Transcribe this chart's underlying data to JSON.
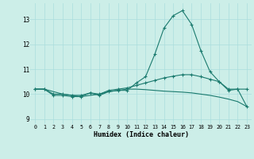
{
  "xlabel": "Humidex (Indice chaleur)",
  "xlim": [
    -0.5,
    23.5
  ],
  "ylim": [
    8.8,
    13.65
  ],
  "background_color": "#cceee8",
  "grid_color": "#aadddd",
  "line_color": "#1a7a6e",
  "x": [
    0,
    1,
    2,
    3,
    4,
    5,
    6,
    7,
    8,
    9,
    10,
    11,
    12,
    13,
    14,
    15,
    16,
    17,
    18,
    19,
    20,
    21,
    22,
    23
  ],
  "line1": [
    10.2,
    10.2,
    9.95,
    9.95,
    9.9,
    9.9,
    10.05,
    9.95,
    10.1,
    10.15,
    10.15,
    10.45,
    10.7,
    11.6,
    12.65,
    13.15,
    13.35,
    12.8,
    11.75,
    10.9,
    10.5,
    10.15,
    10.2,
    10.2
  ],
  "line2": [
    10.2,
    10.2,
    10.0,
    10.0,
    9.95,
    9.95,
    10.05,
    10.0,
    10.15,
    10.2,
    10.25,
    10.35,
    10.45,
    10.55,
    10.65,
    10.72,
    10.78,
    10.78,
    10.7,
    10.6,
    10.5,
    10.2,
    10.2,
    9.5
  ],
  "line3": [
    10.2,
    10.2,
    10.1,
    10.0,
    9.95,
    9.9,
    9.95,
    10.0,
    10.1,
    10.15,
    10.2,
    10.2,
    10.18,
    10.15,
    10.12,
    10.1,
    10.08,
    10.05,
    10.0,
    9.95,
    9.88,
    9.8,
    9.7,
    9.5
  ],
  "yticks": [
    9,
    10,
    11,
    12,
    13
  ],
  "xticks": [
    0,
    1,
    2,
    3,
    4,
    5,
    6,
    7,
    8,
    9,
    10,
    11,
    12,
    13,
    14,
    15,
    16,
    17,
    18,
    19,
    20,
    21,
    22,
    23
  ]
}
